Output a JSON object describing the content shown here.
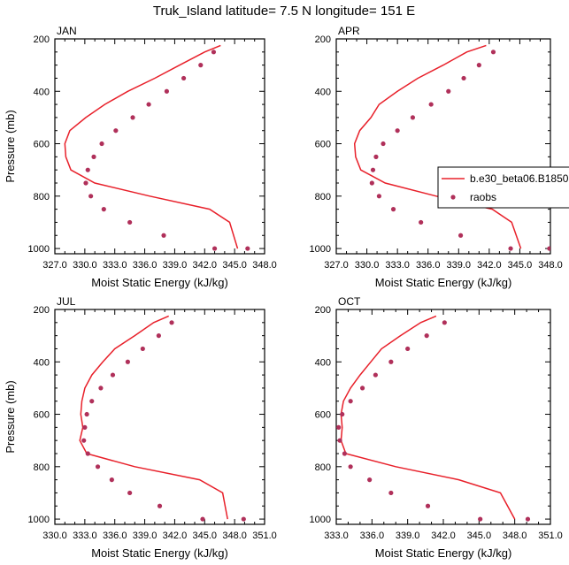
{
  "title": "Truk_Island  latitude= 7.5 N longitude= 151 E",
  "chart_data": [
    {
      "type": "line",
      "panel": "JAN",
      "xlabel": "Moist Static Energy (kJ/kg)",
      "ylabel": "Pressure (mb)",
      "xlim": [
        327.0,
        348.0
      ],
      "ylim": [
        200,
        1020
      ],
      "xticks": [
        "327.0",
        "330.0",
        "333.0",
        "336.0",
        "339.0",
        "342.0",
        "345.0",
        "348.0"
      ],
      "yticks": [
        "200",
        "400",
        "600",
        "800",
        "1000"
      ],
      "series": [
        {
          "name": "b.e30_beta06.B1850",
          "kind": "line",
          "color": "#e8202a",
          "x": [
            343.6,
            342.0,
            339.5,
            337.0,
            334.3,
            332.0,
            330.1,
            328.5,
            328.0,
            328.1,
            328.6,
            331.0,
            336.5,
            342.5,
            344.5,
            345.3
          ],
          "y": [
            225,
            250,
            300,
            350,
            400,
            450,
            500,
            550,
            600,
            650,
            700,
            750,
            800,
            850,
            900,
            1000
          ]
        },
        {
          "name": "raobs",
          "kind": "scatter",
          "color": "#b0305a",
          "x": [
            342.9,
            341.6,
            339.9,
            338.2,
            336.4,
            334.8,
            333.1,
            331.7,
            330.9,
            330.3,
            330.1,
            330.6,
            331.9,
            334.5,
            337.9,
            343.0,
            346.3
          ],
          "y": [
            250,
            300,
            350,
            400,
            450,
            500,
            550,
            600,
            650,
            700,
            750,
            800,
            850,
            900,
            950,
            1000,
            1000
          ]
        }
      ]
    },
    {
      "type": "line",
      "panel": "APR",
      "xlabel": "Moist Static Energy (kJ/kg)",
      "ylabel": "",
      "xlim": [
        327.0,
        348.0
      ],
      "ylim": [
        200,
        1020
      ],
      "xticks": [
        "327.0",
        "330.0",
        "333.0",
        "336.0",
        "339.0",
        "342.0",
        "345.0",
        "348.0"
      ],
      "yticks": [
        "200",
        "400",
        "600",
        "800",
        "1000"
      ],
      "series": [
        {
          "name": "b.e30_beta06.B1850",
          "kind": "line",
          "color": "#e8202a",
          "x": [
            341.7,
            339.8,
            337.5,
            335.0,
            333.0,
            331.2,
            330.4,
            329.3,
            328.8,
            328.9,
            329.4,
            331.8,
            336.8,
            342.3,
            344.2,
            345.1
          ],
          "y": [
            225,
            250,
            300,
            350,
            400,
            450,
            500,
            550,
            600,
            650,
            700,
            750,
            800,
            850,
            900,
            1000
          ]
        },
        {
          "name": "raobs",
          "kind": "scatter",
          "color": "#b0305a",
          "x": [
            342.4,
            341.0,
            339.5,
            338.0,
            336.3,
            334.5,
            333.0,
            331.6,
            330.9,
            330.6,
            330.5,
            331.2,
            332.6,
            335.3,
            339.2,
            344.1,
            347.9
          ],
          "y": [
            250,
            300,
            350,
            400,
            450,
            500,
            550,
            600,
            650,
            700,
            750,
            800,
            850,
            900,
            950,
            1000,
            1000
          ]
        }
      ]
    },
    {
      "type": "line",
      "panel": "JUL",
      "xlabel": "Moist Static Energy (kJ/kg)",
      "ylabel": "Pressure (mb)",
      "xlim": [
        330.0,
        351.0
      ],
      "ylim": [
        200,
        1020
      ],
      "xticks": [
        "330.0",
        "333.0",
        "336.0",
        "339.0",
        "342.0",
        "345.0",
        "348.0",
        "351.0"
      ],
      "yticks": [
        "200",
        "400",
        "600",
        "800",
        "1000"
      ],
      "series": [
        {
          "name": "b.e30_beta06.B1850",
          "kind": "line",
          "color": "#e8202a",
          "x": [
            341.4,
            339.9,
            338.0,
            336.0,
            334.8,
            333.7,
            333.0,
            332.7,
            332.6,
            332.8,
            332.5,
            333.2,
            338.0,
            344.5,
            346.8,
            347.3
          ],
          "y": [
            225,
            250,
            300,
            350,
            400,
            450,
            500,
            550,
            600,
            650,
            700,
            750,
            800,
            850,
            900,
            1000
          ]
        },
        {
          "name": "raobs",
          "kind": "scatter",
          "color": "#b0305a",
          "x": [
            341.7,
            340.4,
            338.8,
            337.3,
            335.8,
            334.6,
            333.7,
            333.2,
            333.0,
            332.9,
            333.3,
            334.3,
            335.7,
            337.5,
            340.5,
            344.8,
            348.9
          ],
          "y": [
            250,
            300,
            350,
            400,
            450,
            500,
            550,
            600,
            650,
            700,
            750,
            800,
            850,
            900,
            950,
            1000,
            1000
          ]
        }
      ]
    },
    {
      "type": "line",
      "panel": "OCT",
      "xlabel": "Moist Static Energy (kJ/kg)",
      "ylabel": "",
      "xlim": [
        333.0,
        351.0
      ],
      "ylim": [
        200,
        1020
      ],
      "xticks": [
        "333.0",
        "336.0",
        "339.0",
        "342.0",
        "345.0",
        "348.0",
        "351.0"
      ],
      "yticks": [
        "200",
        "400",
        "600",
        "800",
        "1000"
      ],
      "series": [
        {
          "name": "b.e30_beta06.B1850",
          "kind": "line",
          "color": "#e8202a",
          "x": [
            341.4,
            340.1,
            338.4,
            336.8,
            335.9,
            335.0,
            334.2,
            333.6,
            333.4,
            333.5,
            333.4,
            333.8,
            338.0,
            343.3,
            346.8,
            348.0
          ],
          "y": [
            225,
            250,
            300,
            350,
            400,
            450,
            500,
            550,
            600,
            650,
            700,
            750,
            800,
            850,
            900,
            1000
          ]
        },
        {
          "name": "raobs",
          "kind": "scatter",
          "color": "#b0305a",
          "x": [
            342.1,
            340.6,
            339.0,
            337.6,
            336.3,
            335.2,
            334.2,
            333.5,
            333.2,
            333.3,
            333.7,
            334.2,
            335.8,
            337.6,
            340.7,
            345.1,
            349.1
          ],
          "y": [
            250,
            300,
            350,
            400,
            450,
            500,
            550,
            600,
            650,
            700,
            750,
            800,
            850,
            900,
            950,
            1000,
            1000
          ]
        }
      ]
    }
  ],
  "legend": {
    "entries": [
      {
        "label": "b.e30_beta06.B1850",
        "marker": "line",
        "color": "#e8202a"
      },
      {
        "label": "raobs",
        "marker": "dot",
        "color": "#b0305a"
      }
    ],
    "location": "right of APR panel"
  }
}
